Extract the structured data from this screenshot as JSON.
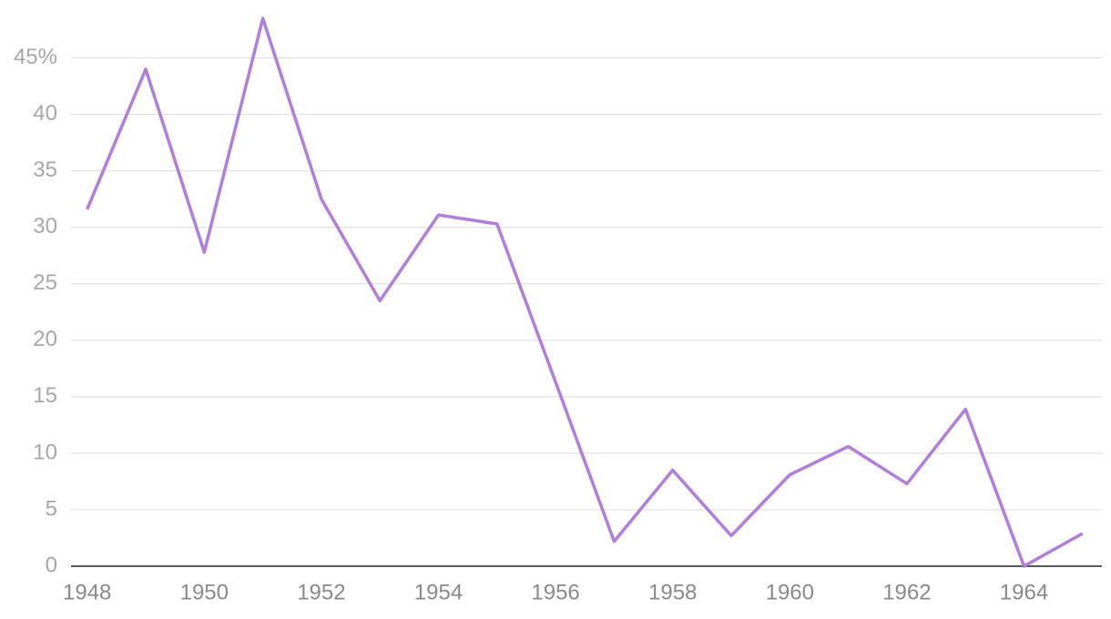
{
  "chart_data": {
    "type": "line",
    "x": [
      1948,
      1949,
      1950,
      1951,
      1952,
      1953,
      1954,
      1955,
      1956,
      1957,
      1958,
      1959,
      1960,
      1961,
      1962,
      1963,
      1964,
      1965
    ],
    "series": [
      {
        "color": "#b07fdb",
        "values": [
          31.6,
          44.0,
          27.8,
          48.5,
          32.5,
          23.5,
          31.1,
          30.3,
          16.3,
          2.2,
          8.5,
          2.7,
          8.1,
          10.6,
          7.3,
          13.9,
          0,
          2.9
        ]
      }
    ],
    "xlim": [
      1947.6,
      1965.33
    ],
    "ylim": [
      0,
      49
    ],
    "xticks": [
      1948,
      1950,
      1952,
      1954,
      1956,
      1958,
      1960,
      1962,
      1964
    ],
    "yticks": [
      0,
      5,
      10,
      15,
      20,
      25,
      30,
      35,
      40,
      {
        "value": 45,
        "label": "45%"
      }
    ],
    "grid": true
  }
}
